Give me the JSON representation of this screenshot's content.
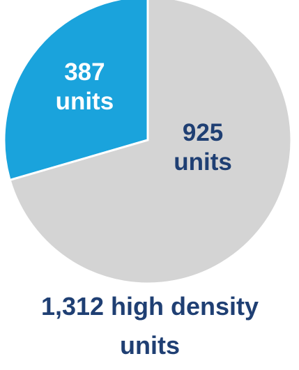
{
  "chart_data": {
    "type": "pie",
    "title": "1,312 high density units",
    "values": [
      387,
      925
    ],
    "value_labels": [
      "387 units",
      "925 units"
    ],
    "colors": [
      "#1aa3dc",
      "#d4d4d4"
    ],
    "label_colors": [
      "#ffffff",
      "#1f3f73"
    ],
    "title_color": "#1f3f73"
  }
}
